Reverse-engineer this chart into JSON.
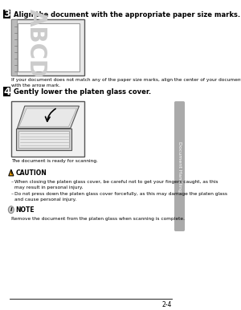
{
  "page_number": "2-4",
  "background_color": "#ffffff",
  "sidebar_color": "#aaaaaa",
  "sidebar_text": "Document Handling",
  "step3_number": "3",
  "step3_text": "Align the document with the appropriate paper size marks.",
  "step3_sub": "If your document does not match any of the paper size marks, align the center of your document\nwith the arrow mark.",
  "step4_number": "4",
  "step4_text": "Gently lower the platen glass cover.",
  "step4_sub": "The document is ready for scanning.",
  "caution_title": "CAUTION",
  "caution_bullets": [
    "When closing the platen glass cover, be careful not to get your fingers caught, as this\nmay result in personal injury.",
    "Do not press down the platen glass cover forcefully, as this may damage the platen glass\nand cause personal injury."
  ],
  "note_title": "NOTE",
  "note_text": "Remove the document from the platen glass when scanning is complete."
}
